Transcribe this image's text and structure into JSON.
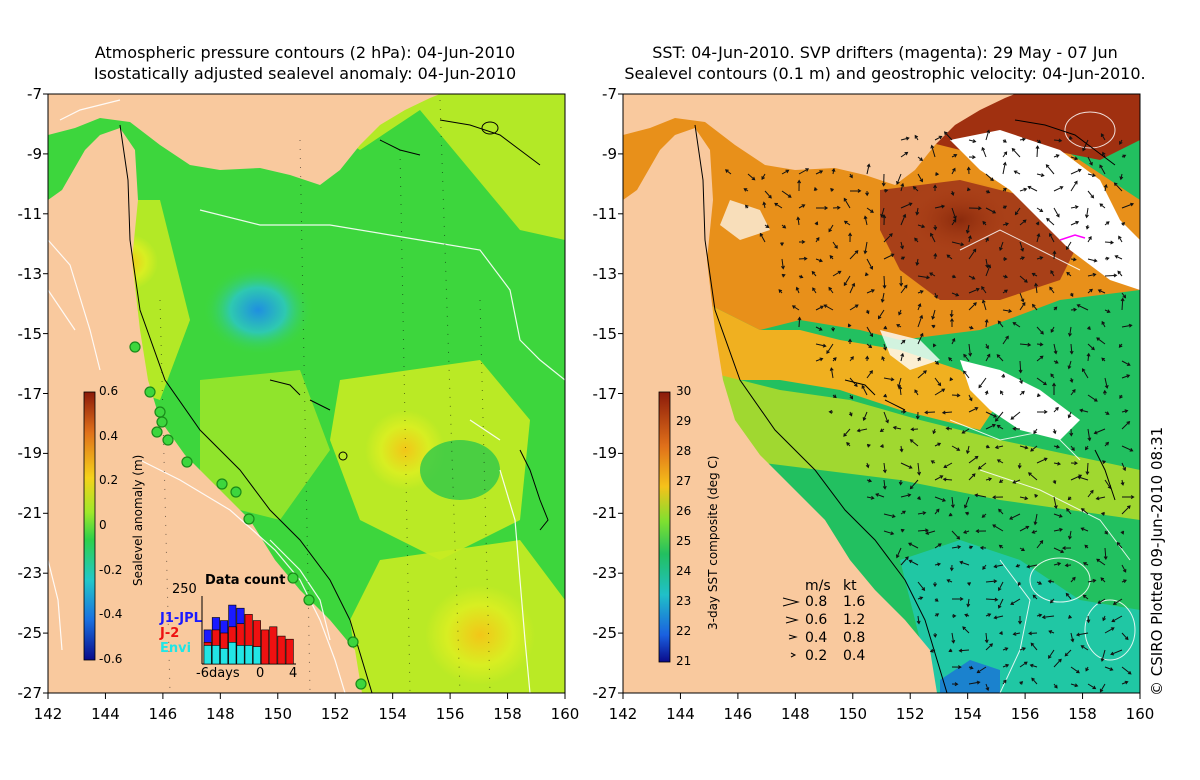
{
  "left_panel": {
    "title_line1": "Atmospheric pressure contours (2 hPa): 04-Jun-2010",
    "title_line2": "Isostatically adjusted sealevel anomaly: 04-Jun-2010",
    "x_ticks": [
      "142",
      "144",
      "146",
      "148",
      "150",
      "152",
      "154",
      "156",
      "158",
      "160"
    ],
    "y_ticks": [
      "-7",
      "-9",
      "-11",
      "-13",
      "-15",
      "-17",
      "-19",
      "-21",
      "-23",
      "-25",
      "-27"
    ],
    "colorbar": {
      "label": "Sealevel anomaly (m)",
      "ticks": [
        "0.6",
        "0.4",
        "0.2",
        "0",
        "-0.2",
        "-0.4",
        "-0.6"
      ],
      "range": [
        -0.6,
        0.6
      ]
    },
    "inset": {
      "title": "Data count",
      "ymax_label": "250",
      "legend": [
        {
          "name": "J1-JPL",
          "color": "#1a1aff"
        },
        {
          "name": "J-2",
          "color": "#ee1111"
        },
        {
          "name": "Envi",
          "color": "#22e5e5"
        }
      ],
      "x_labels": [
        "-6days",
        "0",
        "4"
      ],
      "bars_blue": [
        0.55,
        0.75,
        0.7,
        0.95,
        0.9,
        0,
        0,
        0,
        0,
        0,
        0
      ],
      "bars_red": [
        0.35,
        0.55,
        0.5,
        0.6,
        0.65,
        0.8,
        0.7,
        0.55,
        0.6,
        0.45,
        0.4
      ],
      "bars_cyan": [
        0.3,
        0.3,
        0.25,
        0.35,
        0.3,
        0.3,
        0.28,
        0,
        0,
        0,
        0
      ]
    }
  },
  "right_panel": {
    "title_line1": "SST: 04-Jun-2010. SVP drifters (magenta): 29 May - 07 Jun",
    "title_line2": "Sealevel contours (0.1 m) and geostrophic velocity: 04-Jun-2010.",
    "x_ticks": [
      "142",
      "144",
      "146",
      "148",
      "150",
      "152",
      "154",
      "156",
      "158",
      "160"
    ],
    "y_ticks": [
      "-7",
      "-9",
      "-11",
      "-13",
      "-15",
      "-17",
      "-19",
      "-21",
      "-23",
      "-25",
      "-27"
    ],
    "colorbar": {
      "label": "3-day SST composite (deg C)",
      "ticks": [
        "30",
        "29",
        "28",
        "27",
        "26",
        "25",
        "24",
        "23",
        "22",
        "21"
      ],
      "range": [
        21,
        30
      ]
    },
    "vector_legend": {
      "header_ms": "m/s",
      "header_kt": "kt",
      "rows": [
        {
          "ms": "0.8",
          "kt": "1.6"
        },
        {
          "ms": "0.6",
          "kt": "1.2"
        },
        {
          "ms": "0.4",
          "kt": "0.8"
        },
        {
          "ms": "0.2",
          "kt": "0.4"
        }
      ]
    }
  },
  "credit": "© CSIRO Plotted 09-Jun-2010 08:31",
  "colors": {
    "land": "#f9c99e",
    "sea_green": "#3dd63d",
    "sea_yellow": "#e0f020",
    "sst_orange": "#e8901a",
    "sst_brown": "#a03010",
    "cloud": "#ffffff"
  }
}
